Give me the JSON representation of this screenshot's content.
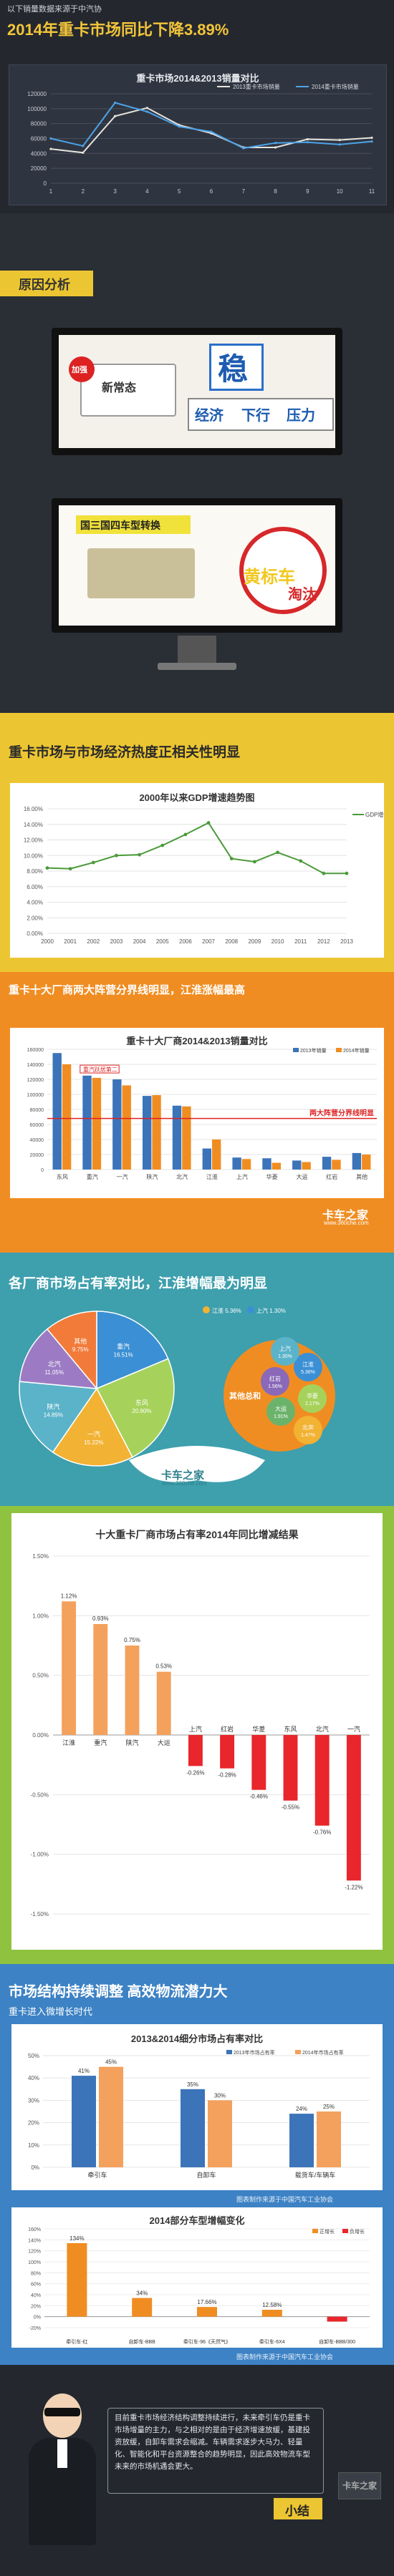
{
  "header": {
    "note": "以下销量数据来源于中汽协",
    "title": "2014年重卡市场同比下降3.89%"
  },
  "section1": {
    "chart_data": {
      "type": "line",
      "title": "重卡市场2014&2013销量对比",
      "categories": [
        "1",
        "2",
        "3",
        "4",
        "5",
        "6",
        "7",
        "8",
        "9",
        "10",
        "11"
      ],
      "series": [
        {
          "name": "2013重卡市场销量",
          "values": [
            46000,
            41000,
            90000,
            101000,
            78000,
            67000,
            48000,
            48000,
            59000,
            58000,
            61000
          ]
        },
        {
          "name": "2014重卡市场销量",
          "values": [
            60000,
            50000,
            108000,
            96000,
            76000,
            69000,
            47000,
            54000,
            55000,
            52000,
            56000
          ]
        }
      ],
      "ylim": [
        0,
        120000
      ],
      "yticks": [
        "0",
        "20000",
        "40000",
        "60000",
        "80000",
        "100000",
        "120000"
      ]
    }
  },
  "section2": {
    "tag": "原因分析",
    "photo1": {
      "left_label": "新常态",
      "left_badge": "加强",
      "sign1": "稳",
      "words": [
        "经济",
        "下行",
        "压力"
      ]
    },
    "photo2": {
      "banner": "国三国四车型转换",
      "stamp": "黄标车",
      "stamp2": "淘汰"
    }
  },
  "section3": {
    "heading": "重卡市场与市场经济热度正相关性明显",
    "chart_data": {
      "type": "line",
      "title": "2000年以来GDP增速趋势图",
      "legend": "GDP增速",
      "categories": [
        "2000",
        "2001",
        "2002",
        "2003",
        "2004",
        "2005",
        "2006",
        "2007",
        "2008",
        "2009",
        "2010",
        "2011",
        "2012",
        "2013"
      ],
      "values": [
        8.4,
        8.3,
        9.1,
        10.0,
        10.1,
        11.3,
        12.7,
        14.2,
        9.6,
        9.2,
        10.4,
        9.3,
        7.7,
        7.7
      ],
      "ylim": [
        0,
        16
      ],
      "yticks": [
        "0.00%",
        "2.00%",
        "4.00%",
        "6.00%",
        "8.00%",
        "10.00%",
        "12.00%",
        "14.00%",
        "16.00%"
      ]
    }
  },
  "section4": {
    "heading": "重卡十大厂商两大阵营分界线明显，江淮涨幅最高",
    "chart_data": {
      "type": "bar",
      "title": "重卡十大厂商2014&2013销量对比",
      "categories": [
        "东风",
        "重汽",
        "一汽",
        "陕汽",
        "北汽",
        "江淮",
        "上汽",
        "华菱",
        "大运",
        "红岩",
        "其他"
      ],
      "series": [
        {
          "name": "2013年销量",
          "values": [
            155000,
            125000,
            120000,
            98000,
            85000,
            28000,
            16000,
            15000,
            12000,
            17000,
            22000
          ]
        },
        {
          "name": "2014年销量",
          "values": [
            140000,
            122000,
            112000,
            99000,
            84000,
            40000,
            14000,
            9000,
            10000,
            13000,
            20000
          ]
        }
      ],
      "ylim": [
        0,
        160000
      ],
      "yticks": [
        "0",
        "20000",
        "40000",
        "60000",
        "80000",
        "100000",
        "120000",
        "140000",
        "160000"
      ],
      "annotation1": "重汽跃居第二",
      "annotation2": "两大阵营分界线明显"
    },
    "brand": "卡车之家",
    "brand_url": "www.360che.com"
  },
  "section5": {
    "heading": "各厂商市场占有率对比，江淮增幅最为明显",
    "chart_data": {
      "type": "pie",
      "slices": [
        {
          "name": "重汽",
          "value": 16.51
        },
        {
          "name": "东风",
          "value": 20.9
        },
        {
          "name": "一汽",
          "value": 15.22
        },
        {
          "name": "陕汽",
          "value": 14.89
        },
        {
          "name": "北汽",
          "value": 11.05
        },
        {
          "name": "其他",
          "value": 9.75
        }
      ],
      "others_title": "其他总和",
      "others": [
        {
          "name": "江淮",
          "value": "5.36%"
        },
        {
          "name": "上汽",
          "value": "1.30%"
        },
        {
          "name": "华菱",
          "value": "2.17%"
        },
        {
          "name": "大运",
          "value": "1.91%"
        },
        {
          "name": "红岩",
          "value": "1.56%"
        },
        {
          "name": "北奔",
          "value": "1.47%"
        }
      ],
      "top_labels": [
        "江淮 5.36%",
        "上汽 1.30%"
      ]
    },
    "brand": "卡车之家",
    "brand_url": "www.360che.com",
    "bar_chart": {
      "type": "bar",
      "title": "十大重卡厂商市场占有率2014年同比增减结果",
      "categories": [
        "江淮",
        "重汽",
        "陕汽",
        "大运",
        "上汽",
        "红岩",
        "华菱",
        "东风",
        "北汽",
        "一汽"
      ],
      "values": [
        1.12,
        0.93,
        0.75,
        0.53,
        -0.26,
        -0.28,
        -0.46,
        -0.55,
        -0.76,
        -1.22
      ],
      "labels": [
        "1.12%",
        "0.93%",
        "0.75%",
        "0.53%",
        "-0.26%",
        "-0.28%",
        "-0.46%",
        "-0.55%",
        "-0.76%",
        "-1.22%"
      ],
      "ylim": [
        -1.5,
        1.5
      ],
      "yticks": [
        "-1.50%",
        "-1.00%",
        "-0.50%",
        "0.00%",
        "0.50%",
        "1.00%",
        "1.50%"
      ]
    }
  },
  "section6": {
    "heading": "市场结构持续调整 高效物流潜力大",
    "subheading": "重卡进入微增长时代",
    "chart1": {
      "type": "bar",
      "title": "2013&2014细分市场占有率对比",
      "categories": [
        "牵引车",
        "自卸车",
        "载货车/车辆车"
      ],
      "series": [
        {
          "name": "2013年市场占有率",
          "values": [
            41,
            35,
            24
          ],
          "labels": [
            "41%",
            "35%",
            "24%"
          ]
        },
        {
          "name": "2014年市场占有率",
          "values": [
            45,
            30,
            25
          ],
          "labels": [
            "45%",
            "30%",
            "25%"
          ]
        }
      ],
      "ylim": [
        0,
        50
      ],
      "yticks": [
        "0%",
        "10%",
        "20%",
        "30%",
        "40%",
        "50%"
      ]
    },
    "credit1": "图表制作来源于中国汽车工业协会",
    "chart2": {
      "type": "bar",
      "title": "2014部分车型增幅变化",
      "categories": [
        "牵引车-红",
        "自卸车-BBB",
        "牵引车-96《天然气》",
        "牵引车-6X4",
        "自卸车-BBB/300"
      ],
      "legend": [
        "正增长",
        "负增长"
      ],
      "values": [
        134,
        34,
        17.66,
        12.58,
        -9
      ],
      "labels": [
        "134%",
        "34%",
        "17.66%",
        "12.58%",
        ""
      ],
      "ylim": [
        -20,
        160
      ],
      "yticks": [
        "-20%",
        "0%",
        "20%",
        "40%",
        "60%",
        "80%",
        "100%",
        "120%",
        "140%",
        "160%"
      ]
    },
    "credit2": "图表制作来源于中国汽车工业协会"
  },
  "summary": {
    "text": "目前重卡市场经济结构调整持续进行，未来牵引车仍是重卡市场增量的主力，与之相对的是由于经济增速放缓，基建投资放缓，自卸车需求会缩减。车辆需求逐步大马力、轻量化、智能化和平台资源整合的趋势明显，因此高效物流车型未来的市场机遇会更大。",
    "label": "小结",
    "stamp": "卡车之家"
  },
  "colors": {
    "dark": "#24282e",
    "yellow": "#ecc632",
    "orange": "#f08d22",
    "teal": "#3e9fad",
    "green": "#8fc23f",
    "blue": "#3d82c4",
    "light_orange": "#f3a15d"
  }
}
